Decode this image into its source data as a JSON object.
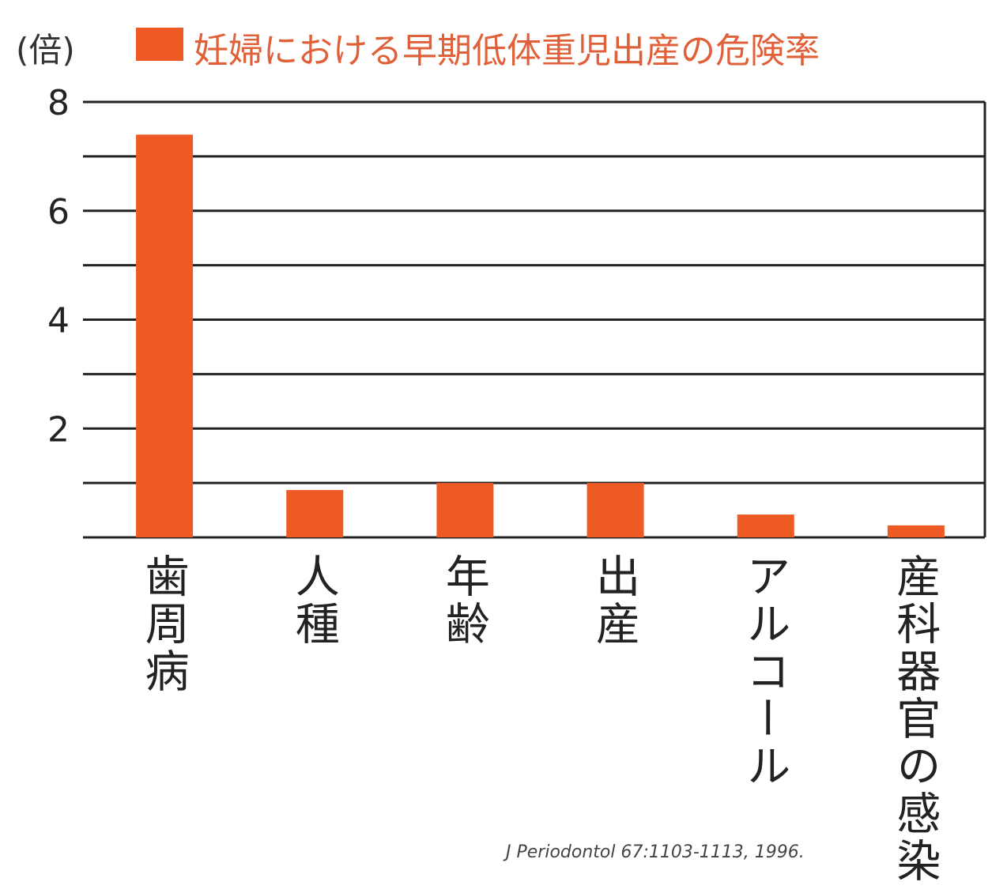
{
  "chart_data": {
    "type": "bar",
    "unit_label": "(倍)",
    "legend": "妊婦における早期低体重児出産の危険率",
    "legend_placement": "top",
    "categories": [
      "歯周病",
      "人種",
      "年齢",
      "出産",
      "アルコール",
      "産科器官の感染"
    ],
    "series": [
      {
        "name": "妊婦における早期低体重児出産の危険率",
        "values": [
          7.4,
          0.87,
          1.0,
          1.0,
          0.42,
          0.22
        ]
      }
    ],
    "ylim": [
      0,
      8
    ],
    "yticks": [
      "2",
      "4",
      "6",
      "8"
    ],
    "grid": true,
    "source": "J Periodontol 67:1103-1113, 1996.",
    "colors": {
      "bar": "#ee5a24",
      "legend_text": "#e0603a",
      "grid": "#222222"
    }
  }
}
